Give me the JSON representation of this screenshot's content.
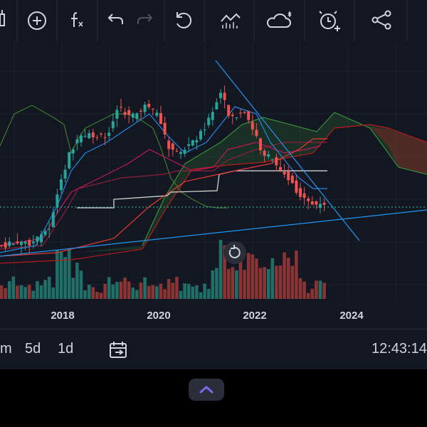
{
  "x_axis": {
    "labels": [
      "2018",
      "2020",
      "2022",
      "2024"
    ]
  },
  "bottom_bar": {
    "intervals": [
      "m",
      "5d",
      "1d"
    ],
    "clock": "12:43:14"
  }
}
